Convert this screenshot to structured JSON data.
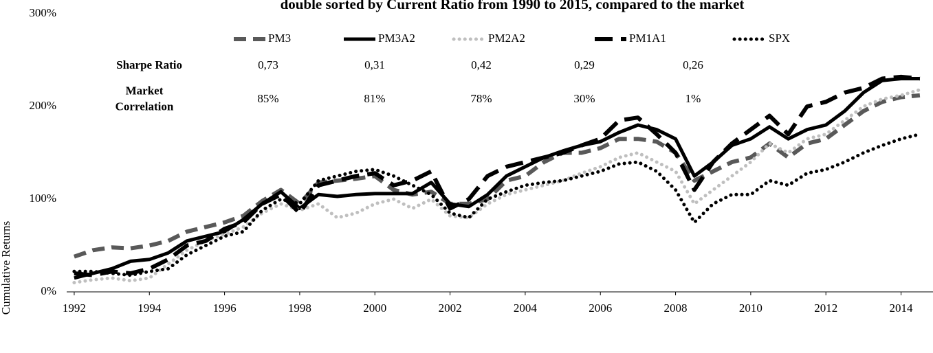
{
  "chart_data": {
    "type": "line",
    "title": "double sorted by Current Ratio from 1990 to 2015, compared to the market",
    "y_label": "Cumulative Returns",
    "x": [
      1992,
      1992.5,
      1993,
      1993.5,
      1994,
      1994.5,
      1995,
      1995.5,
      1996,
      1996.5,
      1997,
      1997.5,
      1998,
      1998.5,
      1999,
      1999.5,
      2000,
      2000.5,
      2001,
      2001.5,
      2002,
      2002.5,
      2003,
      2003.5,
      2004,
      2004.5,
      2005,
      2005.5,
      2006,
      2006.5,
      2007,
      2007.5,
      2008,
      2008.5,
      2009,
      2009.5,
      2010,
      2010.5,
      2011,
      2011.5,
      2012,
      2012.5,
      2013,
      2013.5,
      2014,
      2014.5
    ],
    "xlim": [
      1991.8,
      2014.85
    ],
    "xticks": [
      1992,
      1994,
      1996,
      1998,
      2000,
      2002,
      2004,
      2006,
      2008,
      2010,
      2012,
      2014
    ],
    "ylim": [
      0,
      300
    ],
    "yticks": [
      {
        "value": 0,
        "label": "0%"
      },
      {
        "value": 100,
        "label": "100%"
      },
      {
        "value": 200,
        "label": "200%"
      },
      {
        "value": 300,
        "label": "300%"
      }
    ],
    "series": [
      {
        "name": "PM3",
        "color": "#595959",
        "style": "dash",
        "values": [
          38,
          45,
          48,
          47,
          50,
          55,
          65,
          70,
          75,
          82,
          98,
          110,
          95,
          118,
          120,
          122,
          125,
          110,
          105,
          108,
          95,
          95,
          100,
          120,
          125,
          140,
          150,
          150,
          155,
          165,
          165,
          162,
          150,
          120,
          130,
          140,
          145,
          160,
          145,
          160,
          165,
          180,
          195,
          205,
          210,
          212
        ]
      },
      {
        "name": "PM3A2",
        "color": "#000000",
        "style": "solid",
        "values": [
          15,
          20,
          25,
          33,
          35,
          42,
          55,
          60,
          65,
          78,
          95,
          108,
          90,
          105,
          103,
          105,
          106,
          106,
          106,
          118,
          95,
          92,
          105,
          125,
          135,
          145,
          152,
          158,
          162,
          172,
          180,
          175,
          165,
          125,
          140,
          158,
          165,
          178,
          165,
          175,
          180,
          195,
          215,
          228,
          230,
          230
        ]
      },
      {
        "name": "PM2A2",
        "color": "#bfbfbf",
        "style": "dot",
        "values": [
          10,
          13,
          15,
          12,
          15,
          30,
          45,
          55,
          62,
          70,
          85,
          95,
          88,
          95,
          80,
          85,
          95,
          100,
          90,
          100,
          82,
          80,
          95,
          105,
          110,
          115,
          120,
          128,
          135,
          145,
          150,
          140,
          130,
          95,
          110,
          125,
          140,
          160,
          150,
          165,
          170,
          185,
          200,
          208,
          212,
          218
        ]
      },
      {
        "name": "PM1A1",
        "color": "#000000",
        "style": "longdash",
        "values": [
          20,
          18,
          22,
          20,
          25,
          35,
          50,
          55,
          68,
          75,
          95,
          105,
          85,
          115,
          120,
          125,
          128,
          115,
          120,
          130,
          90,
          100,
          125,
          135,
          140,
          145,
          150,
          158,
          165,
          185,
          188,
          170,
          150,
          110,
          140,
          160,
          175,
          190,
          170,
          200,
          205,
          215,
          220,
          230,
          232,
          230
        ]
      },
      {
        "name": "SPX",
        "color": "#000000",
        "style": "dot",
        "values": [
          22,
          22,
          20,
          18,
          22,
          25,
          40,
          50,
          60,
          65,
          88,
          100,
          95,
          120,
          125,
          130,
          132,
          125,
          115,
          105,
          85,
          80,
          100,
          108,
          115,
          118,
          120,
          125,
          130,
          138,
          140,
          130,
          110,
          75,
          95,
          105,
          105,
          120,
          115,
          128,
          132,
          140,
          150,
          158,
          165,
          170
        ]
      }
    ],
    "stats": [
      {
        "label": [
          "Sharpe Ratio"
        ],
        "values": [
          "0,73",
          "0,31",
          "0,42",
          "0,29",
          "0,26"
        ]
      },
      {
        "label": [
          "Market",
          "Correlation"
        ],
        "values": [
          "85%",
          "81%",
          "78%",
          "30%",
          "1%"
        ]
      }
    ]
  }
}
